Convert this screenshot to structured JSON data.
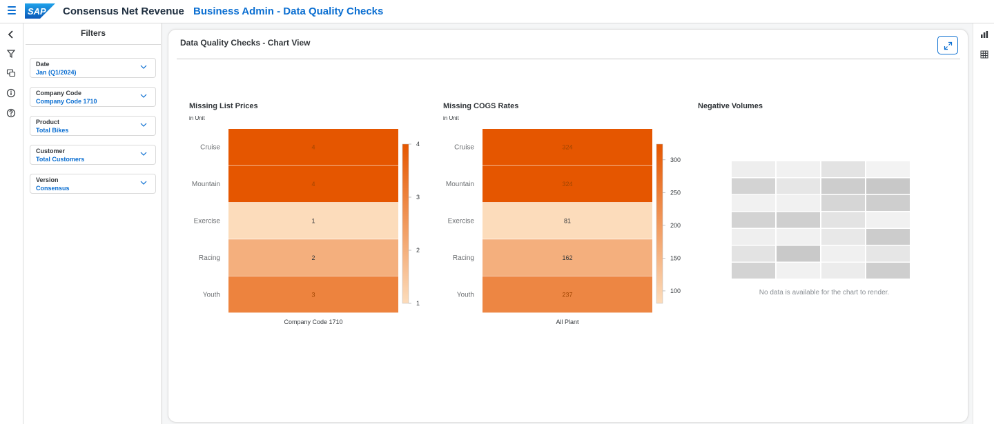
{
  "shell": {
    "app_title": "Consensus Net Revenue",
    "page_title": "Business Admin - Data Quality Checks",
    "logo_text": "SAP"
  },
  "colors": {
    "accent": "#0a6ed1",
    "heat_high": "#e55600",
    "heat_low": "#fcdcbb"
  },
  "filters": {
    "title": "Filters",
    "items": [
      {
        "label": "Date",
        "value": "Jan (Q1/2024)"
      },
      {
        "label": "Company Code",
        "value": "Company Code 1710"
      },
      {
        "label": "Product",
        "value": "Total Bikes"
      },
      {
        "label": "Customer",
        "value": "Total Customers"
      },
      {
        "label": "Version",
        "value": "Consensus"
      }
    ]
  },
  "card": {
    "title": "Data Quality Checks - Chart View"
  },
  "no_data_text": "No data is available for the chart to render.",
  "chart_data": [
    {
      "type": "heatmap",
      "title": "Missing List Prices",
      "subtitle": "in Unit",
      "y_categories": [
        "Cruise",
        "Mountain",
        "Exercise",
        "Racing",
        "Youth"
      ],
      "x_categories": [
        "Company Code 1710"
      ],
      "values": [
        4,
        4,
        1,
        2,
        3
      ],
      "legend_ticks": [
        "4",
        "3",
        "2",
        "1"
      ],
      "legend_range": [
        1,
        4
      ]
    },
    {
      "type": "heatmap",
      "title": "Missing COGS Rates",
      "subtitle": "in Unit",
      "y_categories": [
        "Cruise",
        "Mountain",
        "Exercise",
        "Racing",
        "Youth"
      ],
      "x_categories": [
        "All Plant"
      ],
      "values": [
        324,
        324,
        81,
        162,
        237
      ],
      "legend_ticks": [
        "300",
        "250",
        "200",
        "150",
        "100"
      ],
      "legend_range": [
        81,
        324
      ]
    },
    {
      "type": "heatmap",
      "title": "Negative Volumes",
      "subtitle": "",
      "values": []
    }
  ]
}
